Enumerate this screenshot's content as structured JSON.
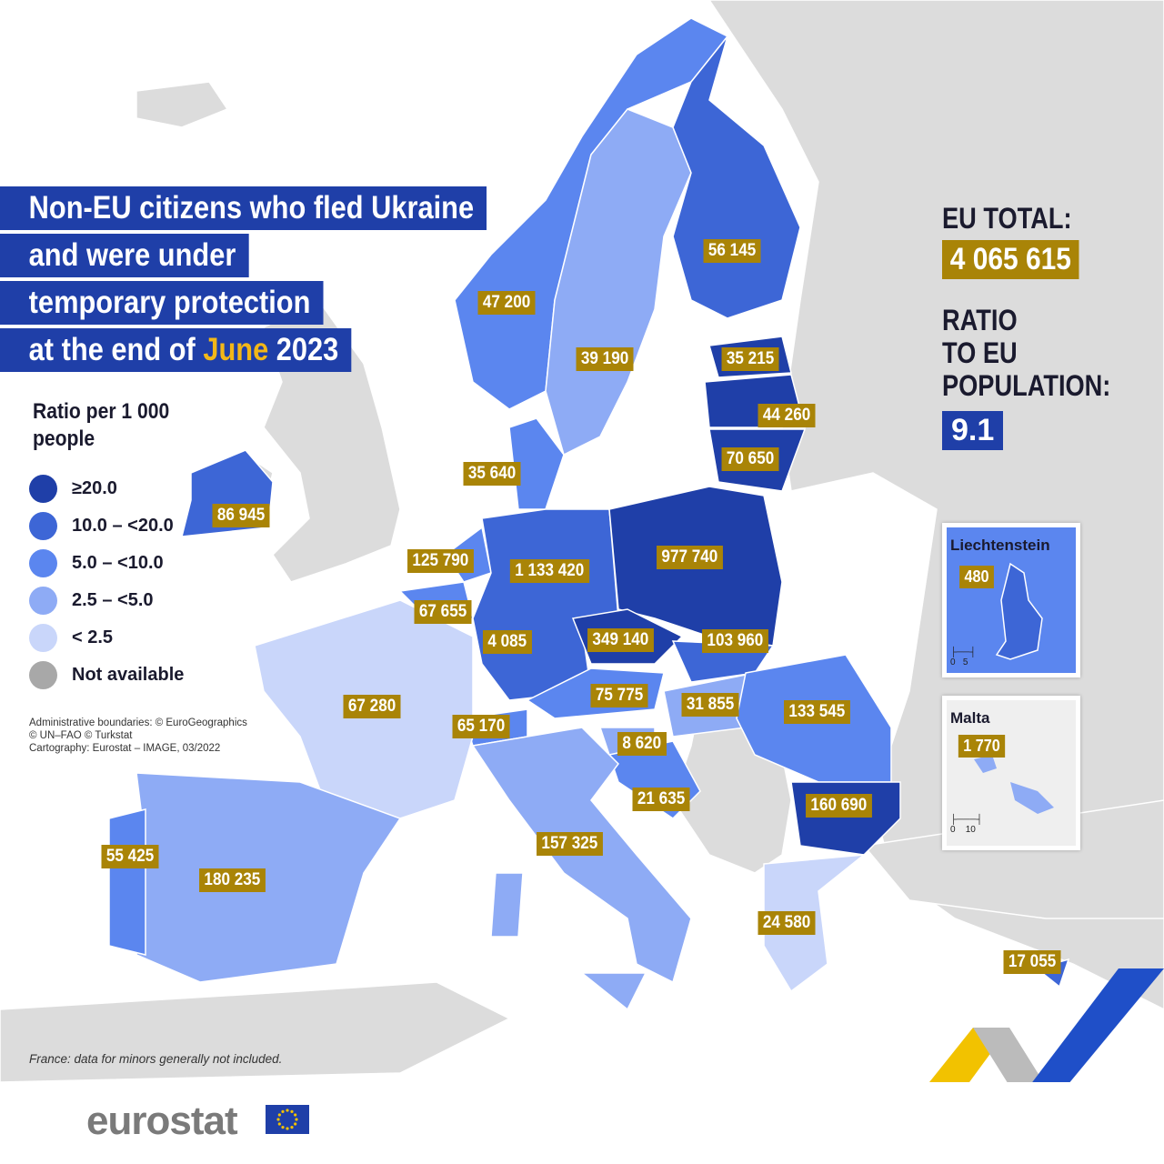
{
  "title": {
    "line1": "Non-EU citizens who fled Ukraine",
    "line2": "and were under",
    "line3": "temporary protection",
    "line4_prefix": "at the end of ",
    "line4_month": "June",
    "line4_suffix": " 2023"
  },
  "legend": {
    "title": "Ratio per 1 000 people",
    "items": [
      {
        "label": "≥20.0",
        "color": "#1f3fa8"
      },
      {
        "label": "10.0 – <20.0",
        "color": "#3d66d6"
      },
      {
        "label": "5.0 – <10.0",
        "color": "#5b86ef"
      },
      {
        "label": "2.5 – <5.0",
        "color": "#8eabf5"
      },
      {
        "label": "< 2.5",
        "color": "#c9d6fa"
      },
      {
        "label": "Not available",
        "color": "#a8a8a8"
      }
    ]
  },
  "sources": {
    "line1": "Administrative boundaries: © EuroGeographics",
    "line2": "© UN–FAO © Turkstat",
    "line3": "Cartography: Eurostat – IMAGE, 03/2022"
  },
  "note": "France: data for minors generally not included.",
  "summary": {
    "eu_total_label": "EU TOTAL:",
    "eu_total": "4 065 615",
    "ratio_label_1": "RATIO",
    "ratio_label_2": "TO EU",
    "ratio_label_3": "POPULATION:",
    "ratio": "9.1"
  },
  "countries": [
    {
      "id": "NO",
      "value": "47 200",
      "class": "5.0 – <10.0"
    },
    {
      "id": "SE",
      "value": "39 190",
      "class": "2.5 – <5.0"
    },
    {
      "id": "FI",
      "value": "56 145",
      "class": "10.0 – <20.0"
    },
    {
      "id": "EE",
      "value": "35 215",
      "class": "≥20.0"
    },
    {
      "id": "LV",
      "value": "44 260",
      "class": "≥20.0"
    },
    {
      "id": "LT",
      "value": "70 650",
      "class": "≥20.0"
    },
    {
      "id": "DK",
      "value": "35 640",
      "class": "5.0 – <10.0"
    },
    {
      "id": "IE",
      "value": "86 945",
      "class": "10.0 – <20.0"
    },
    {
      "id": "NL",
      "value": "125 790",
      "class": "5.0 – <10.0"
    },
    {
      "id": "BE",
      "value": "67 655",
      "class": "5.0 – <10.0"
    },
    {
      "id": "LU",
      "value": "4 085",
      "class": "5.0 – <10.0"
    },
    {
      "id": "DE",
      "value": "1 133 420",
      "class": "10.0 – <20.0"
    },
    {
      "id": "PL",
      "value": "977 740",
      "class": "≥20.0"
    },
    {
      "id": "CZ",
      "value": "349 140",
      "class": "≥20.0"
    },
    {
      "id": "SK",
      "value": "103 960",
      "class": "10.0 – <20.0"
    },
    {
      "id": "AT",
      "value": "75 775",
      "class": "5.0 – <10.0"
    },
    {
      "id": "HU",
      "value": "31 855",
      "class": "2.5 – <5.0"
    },
    {
      "id": "RO",
      "value": "133 545",
      "class": "5.0 – <10.0"
    },
    {
      "id": "BG",
      "value": "160 690",
      "class": "≥20.0"
    },
    {
      "id": "CH",
      "value": "65 170",
      "class": "5.0 – <10.0"
    },
    {
      "id": "SI",
      "value": "8 620",
      "class": "2.5 – <5.0"
    },
    {
      "id": "HR",
      "value": "21 635",
      "class": "5.0 – <10.0"
    },
    {
      "id": "IT",
      "value": "157 325",
      "class": "2.5 – <5.0"
    },
    {
      "id": "FR",
      "value": "67 280",
      "class": "< 2.5"
    },
    {
      "id": "ES",
      "value": "180 235",
      "class": "2.5 – <5.0"
    },
    {
      "id": "PT",
      "value": "55 425",
      "class": "5.0 – <10.0"
    },
    {
      "id": "EL",
      "value": "24 580",
      "class": "< 2.5"
    },
    {
      "id": "CY",
      "value": "17 055",
      "class": "10.0 – <20.0"
    }
  ],
  "insets": {
    "liechtenstein": {
      "name": "Liechtenstein",
      "value": "480",
      "scale_0": "0",
      "scale_max": "5"
    },
    "malta": {
      "name": "Malta",
      "value": "1 770",
      "scale_0": "0",
      "scale_max": "10"
    }
  },
  "logo": {
    "text": "eurostat"
  },
  "colors": {
    "land_na": "#dcdcdc",
    "label_bg": "#a98407",
    "title_bg": "#1f3fa8",
    "highlight": "#f2b718"
  }
}
